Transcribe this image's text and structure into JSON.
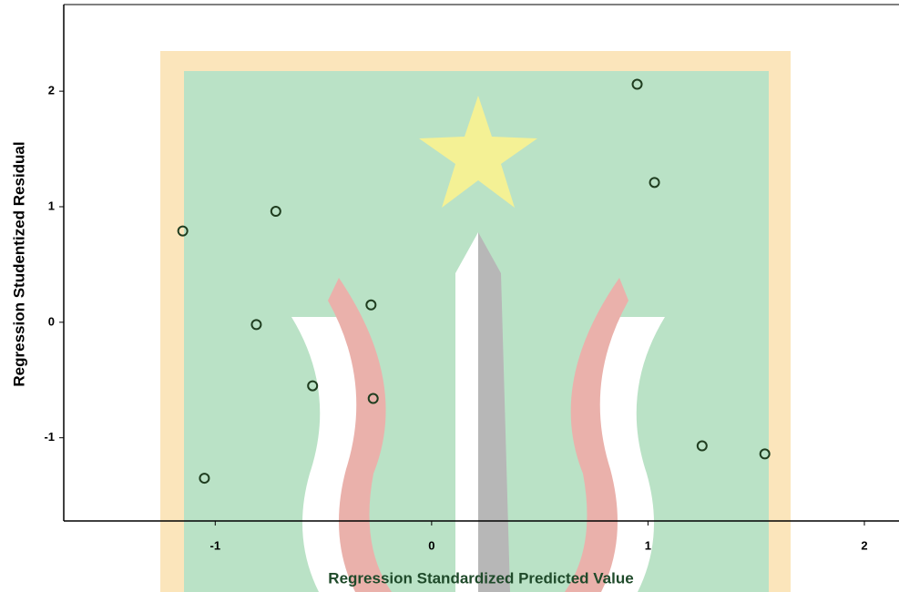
{
  "chart_data": {
    "type": "scatter",
    "x_label": "Regression Standardized Predicted Value",
    "y_label": "Regression Studentized Residual",
    "x": [
      -1.15,
      -1.05,
      -0.81,
      -0.72,
      -0.55,
      -0.28,
      -0.27,
      0.95,
      1.03,
      1.25,
      1.54
    ],
    "values": [
      0.79,
      -1.35,
      -0.02,
      0.96,
      -0.55,
      0.15,
      -0.66,
      2.06,
      1.21,
      -1.07,
      -1.14
    ],
    "color": "#1f3d1f",
    "xlim": [
      -1.7,
      2.16
    ],
    "ylim": [
      -1.72,
      2.75
    ],
    "xticks": [
      -1,
      0,
      1,
      2
    ],
    "yticks": [
      -1,
      0,
      1,
      2
    ]
  }
}
